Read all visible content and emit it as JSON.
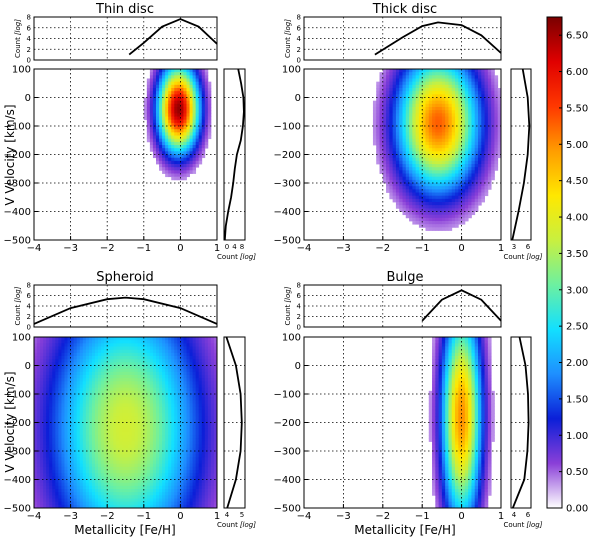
{
  "chart_data": [
    {
      "type": "heatmap",
      "title": "Thin disc",
      "xlabel": "",
      "ylabel": "V Velocity [km/s]",
      "xlim": [
        -4,
        1
      ],
      "ylim": [
        -500,
        100
      ],
      "density": {
        "center_feh": -0.05,
        "center_v": -40,
        "sigma_feh": 0.35,
        "sigma_v": 95,
        "peak": 6.6
      },
      "top_hist": {
        "x": [
          -1.4,
          -1.0,
          -0.5,
          0.0,
          0.5,
          1.0
        ],
        "y": [
          1.0,
          3.2,
          6.2,
          7.6,
          6.2,
          3.0
        ],
        "ylabel": "Count",
        "ylabel_sub": "[log]",
        "yticks": [
          "0",
          "2",
          "4",
          "6",
          "8"
        ]
      },
      "side_hist": {
        "v": [
          100,
          50,
          0,
          -50,
          -100,
          -150,
          -200,
          -250,
          -300,
          -350,
          -400,
          -450,
          -500
        ],
        "count": [
          5.5,
          6.6,
          7.5,
          7.7,
          7.3,
          6.5,
          5.0,
          4.2,
          3.6,
          2.8,
          1.7,
          0.8,
          0.4
        ],
        "xlabel": "Count",
        "xlabel_sub": "[log]",
        "xticks": [
          "0",
          "4",
          "8"
        ]
      },
      "xticks": [
        "−4",
        "−3",
        "−2",
        "−1",
        "0",
        "1"
      ],
      "yticks": [
        "100",
        "0",
        "−100",
        "−200",
        "−300",
        "−400",
        "−500"
      ]
    },
    {
      "type": "heatmap",
      "title": "Thick disc",
      "xlabel": "",
      "ylabel": "",
      "xlim": [
        -4,
        1
      ],
      "ylim": [
        -500,
        100
      ],
      "density": {
        "center_feh": -0.6,
        "center_v": -90,
        "sigma_feh": 0.65,
        "sigma_v": 150,
        "peak": 5.3
      },
      "top_hist": {
        "x": [
          -2.2,
          -1.5,
          -1.0,
          -0.6,
          0.0,
          0.5,
          1.0
        ],
        "y": [
          1.0,
          4.2,
          6.3,
          7.0,
          6.5,
          4.6,
          1.3
        ],
        "ylabel": "Count",
        "ylabel_sub": "[log]",
        "yticks": [
          "0",
          "2",
          "4",
          "6",
          "8"
        ]
      },
      "side_hist": {
        "v": [
          100,
          0,
          -100,
          -200,
          -300,
          -400,
          -500
        ],
        "count": [
          5.3,
          6.5,
          6.9,
          6.5,
          5.6,
          4.3,
          2.8
        ],
        "xlabel": "Count",
        "xlabel_sub": "[log]",
        "xticks": [
          "3",
          "6"
        ]
      },
      "xticks": [
        "−4",
        "−3",
        "−2",
        "−1",
        "0",
        "1"
      ],
      "yticks": [
        "100",
        "0",
        "−100",
        "−200",
        "−300",
        "−400",
        "−500"
      ]
    },
    {
      "type": "heatmap",
      "title": "Spheroid",
      "xlabel": "Metallicity [Fe/H]",
      "ylabel": "V Velocity [km/s]",
      "xlim": [
        -4,
        1
      ],
      "ylim": [
        -500,
        100
      ],
      "density": {
        "center_feh": -1.5,
        "center_v": -220,
        "sigma_feh": 1.3,
        "sigma_v": 300,
        "peak": 3.8
      },
      "top_hist": {
        "x": [
          -4.0,
          -3.0,
          -2.0,
          -1.5,
          -1.0,
          0.0,
          1.0
        ],
        "y": [
          0.6,
          3.6,
          5.3,
          5.6,
          5.3,
          3.6,
          0.6
        ],
        "ylabel": "Count",
        "ylabel_sub": "[log]",
        "yticks": [
          "0",
          "2",
          "4",
          "6",
          "8"
        ]
      },
      "side_hist": {
        "v": [
          100,
          0,
          -100,
          -200,
          -300,
          -400,
          -500
        ],
        "count": [
          3.6,
          4.8,
          5.4,
          5.55,
          5.4,
          4.8,
          3.7
        ],
        "xlabel": "Count",
        "xlabel_sub": "[log]",
        "xticks": [
          "4",
          "5"
        ]
      },
      "xticks": [
        "−4",
        "−3",
        "−2",
        "−1",
        "0",
        "1"
      ],
      "yticks": [
        "100",
        "0",
        "−100",
        "−200",
        "−300",
        "−400",
        "−500"
      ]
    },
    {
      "type": "heatmap",
      "title": "Bulge",
      "xlabel": "Metallicity [Fe/H]",
      "ylabel": "",
      "xlim": [
        -4,
        1
      ],
      "ylim": [
        -500,
        100
      ],
      "density": {
        "center_feh": 0.0,
        "center_v": -180,
        "sigma_feh": 0.32,
        "sigma_v": 240,
        "peak": 5.0
      },
      "top_hist": {
        "x": [
          -1.0,
          -0.5,
          0.0,
          0.5,
          1.0
        ],
        "y": [
          1.2,
          5.2,
          7.0,
          5.2,
          1.2
        ],
        "ylabel": "Count",
        "ylabel_sub": "[log]",
        "yticks": [
          "0",
          "2",
          "4",
          "6",
          "8"
        ]
      },
      "side_hist": {
        "v": [
          100,
          0,
          -100,
          -200,
          -300,
          -400,
          -500
        ],
        "count": [
          5.2,
          6.2,
          6.6,
          6.7,
          6.5,
          6.0,
          4.1
        ],
        "xlabel": "Count",
        "xlabel_sub": "[log]",
        "xticks": [
          "4",
          "6"
        ]
      },
      "xticks": [
        "−4",
        "−3",
        "−2",
        "−1",
        "0",
        "1"
      ],
      "yticks": [
        "100",
        "0",
        "−100",
        "−200",
        "−300",
        "−400",
        "−500"
      ]
    }
  ],
  "colorbar": {
    "min": 0.0,
    "max": 6.75,
    "ticks": [
      "0.00",
      "0.50",
      "1.00",
      "1.50",
      "2.00",
      "2.50",
      "3.00",
      "3.50",
      "4.00",
      "4.50",
      "5.00",
      "5.50",
      "6.00",
      "6.50"
    ],
    "colors": [
      "#ffffff",
      "#8a3fd8",
      "#0b1fd8",
      "#1e8fff",
      "#12e0ff",
      "#6df0a0",
      "#c8f040",
      "#ffe800",
      "#ff9d00",
      "#ff3800",
      "#e00000",
      "#7a0000"
    ]
  }
}
